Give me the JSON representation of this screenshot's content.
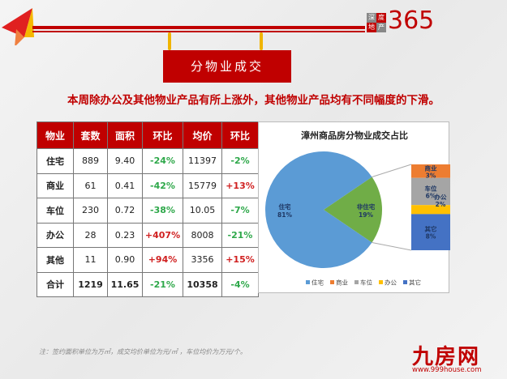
{
  "header": {
    "logo_chars": [
      "深",
      "度",
      "地",
      "产"
    ],
    "logo_number": "365",
    "section_title": "分物业成交"
  },
  "subtitle": "本周除办公及其他物业产品有所上涨外，其他物业产品均有不同幅度的下滑。",
  "table": {
    "headers": [
      "物业",
      "套数",
      "面积",
      "环比",
      "均价",
      "环比"
    ],
    "rows": [
      [
        "住宅",
        "889",
        "9.40",
        "-24%",
        "11397",
        "-2%"
      ],
      [
        "商业",
        "61",
        "0.41",
        "-42%",
        "15779",
        "+13%"
      ],
      [
        "车位",
        "230",
        "0.72",
        "-38%",
        "10.05",
        "-7%"
      ],
      [
        "办公",
        "28",
        "0.23",
        "+407%",
        "8008",
        "-21%"
      ],
      [
        "其他",
        "11",
        "0.90",
        "+94%",
        "3356",
        "+15%"
      ],
      [
        "合计",
        "1219",
        "11.65",
        "-21%",
        "10358",
        "-4%"
      ]
    ]
  },
  "chart_data": {
    "type": "pie",
    "title": "漳州商品房分物业成交占比",
    "pie": [
      {
        "label": "住宅",
        "value": 81,
        "display": "81%",
        "color": "#5b9bd5"
      },
      {
        "label": "非住宅",
        "value": 19,
        "display": "19%",
        "color": "#70ad47"
      }
    ],
    "breakdown": [
      {
        "label": "商业",
        "value": 3,
        "display": "3%",
        "color": "#ed7d31"
      },
      {
        "label": "车位",
        "value": 6,
        "display": "6%",
        "color": "#a5a5a5"
      },
      {
        "label": "办公",
        "value": 2,
        "display": "2%",
        "color": "#ffc000"
      },
      {
        "label": "其它",
        "value": 8,
        "display": "8%",
        "color": "#4472c4"
      }
    ],
    "legend": [
      "住宅",
      "商业",
      "车位",
      "办公",
      "其它"
    ],
    "legend_colors": [
      "#5b9bd5",
      "#ed7d31",
      "#a5a5a5",
      "#ffc000",
      "#4472c4"
    ],
    "legend_position": "bottom"
  },
  "footer": {
    "note": "注：签约面积单位为万㎡，成交均价单位为元/㎡ ，车位均价为万元/个。",
    "brand": "九房网",
    "url": "www.999house.com"
  }
}
